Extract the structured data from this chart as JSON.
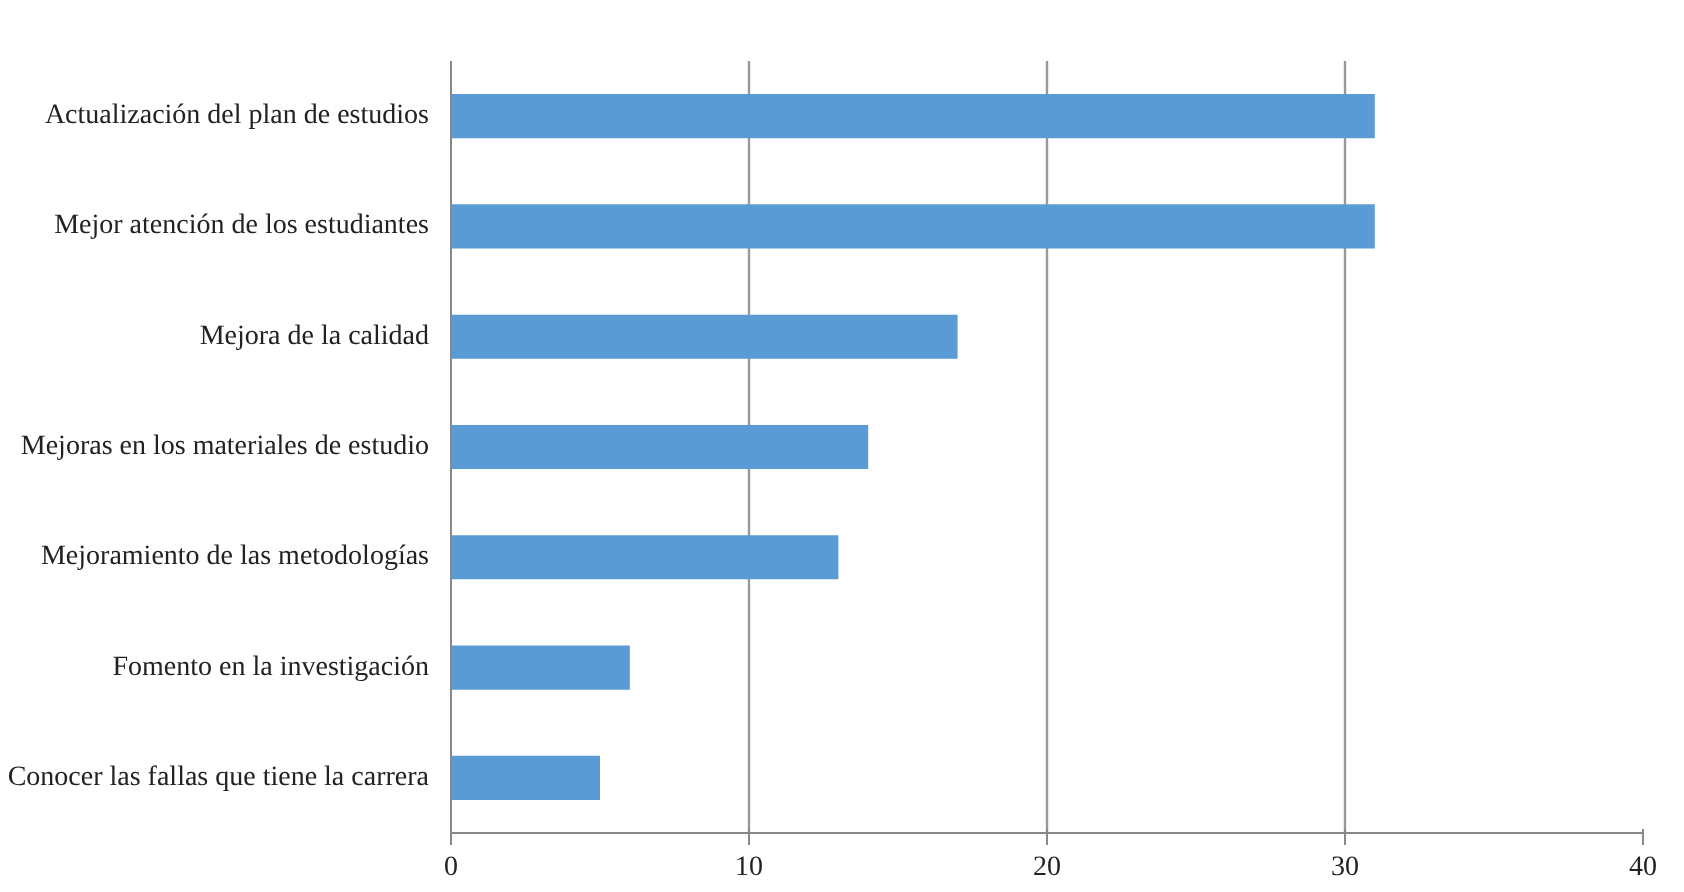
{
  "chart_data": {
    "type": "bar",
    "orientation": "horizontal",
    "categories": [
      "Actualización del plan de estudios",
      "Mejor atención de los estudiantes",
      "Mejora de la calidad",
      "Mejoras en los materiales de estudio",
      "Mejoramiento de las metodologías",
      "Fomento en la investigación",
      "Conocer las fallas que tiene la carrera"
    ],
    "values": [
      31,
      31,
      17,
      14,
      13,
      6,
      5
    ],
    "color": "#5b9bd5",
    "xlim": [
      0,
      40
    ],
    "xticks": [
      0,
      10,
      20,
      30,
      40
    ],
    "grid": "x"
  }
}
